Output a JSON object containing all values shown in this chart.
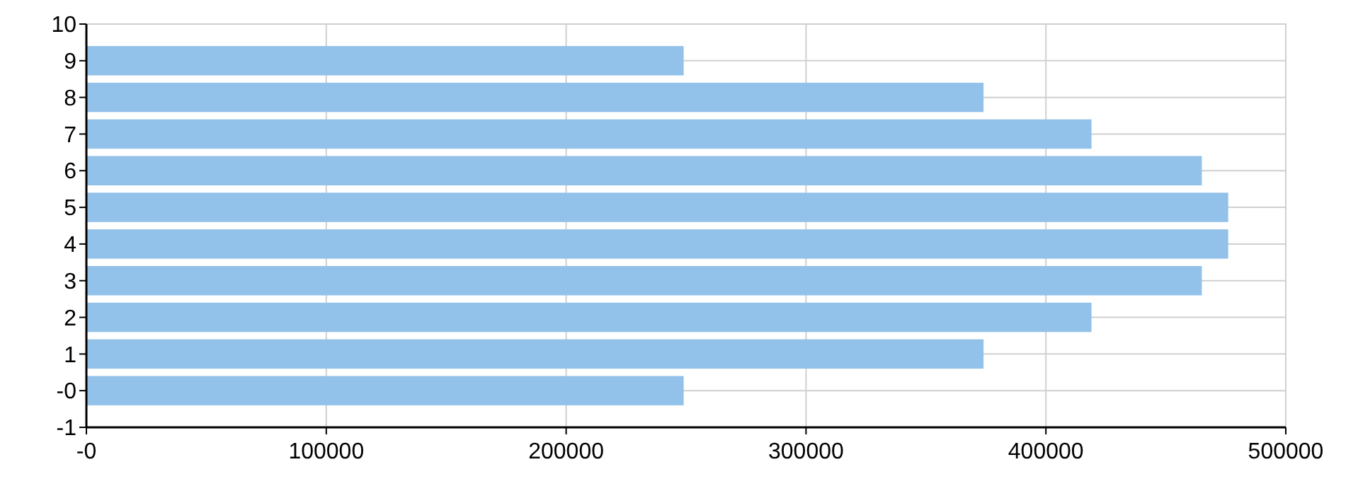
{
  "chart_data": {
    "type": "bar",
    "orientation": "horizontal",
    "x": [
      0,
      1,
      2,
      3,
      4,
      5,
      6,
      7,
      8,
      9
    ],
    "values": [
      249000,
      374000,
      419000,
      465000,
      476000,
      476000,
      465000,
      419000,
      374000,
      249000
    ],
    "color": "#92c1e9",
    "xlim": [
      0,
      500000
    ],
    "xticks": [
      {
        "value": 0,
        "label": "-0"
      },
      100000,
      200000,
      300000,
      400000,
      500000
    ],
    "ylim": [
      -1,
      10
    ],
    "yticks": [
      {
        "value": -1,
        "label": "-1"
      },
      {
        "value": 0,
        "label": "-0"
      },
      1,
      2,
      3,
      4,
      5,
      6,
      7,
      8,
      9,
      10
    ],
    "grid": true
  }
}
